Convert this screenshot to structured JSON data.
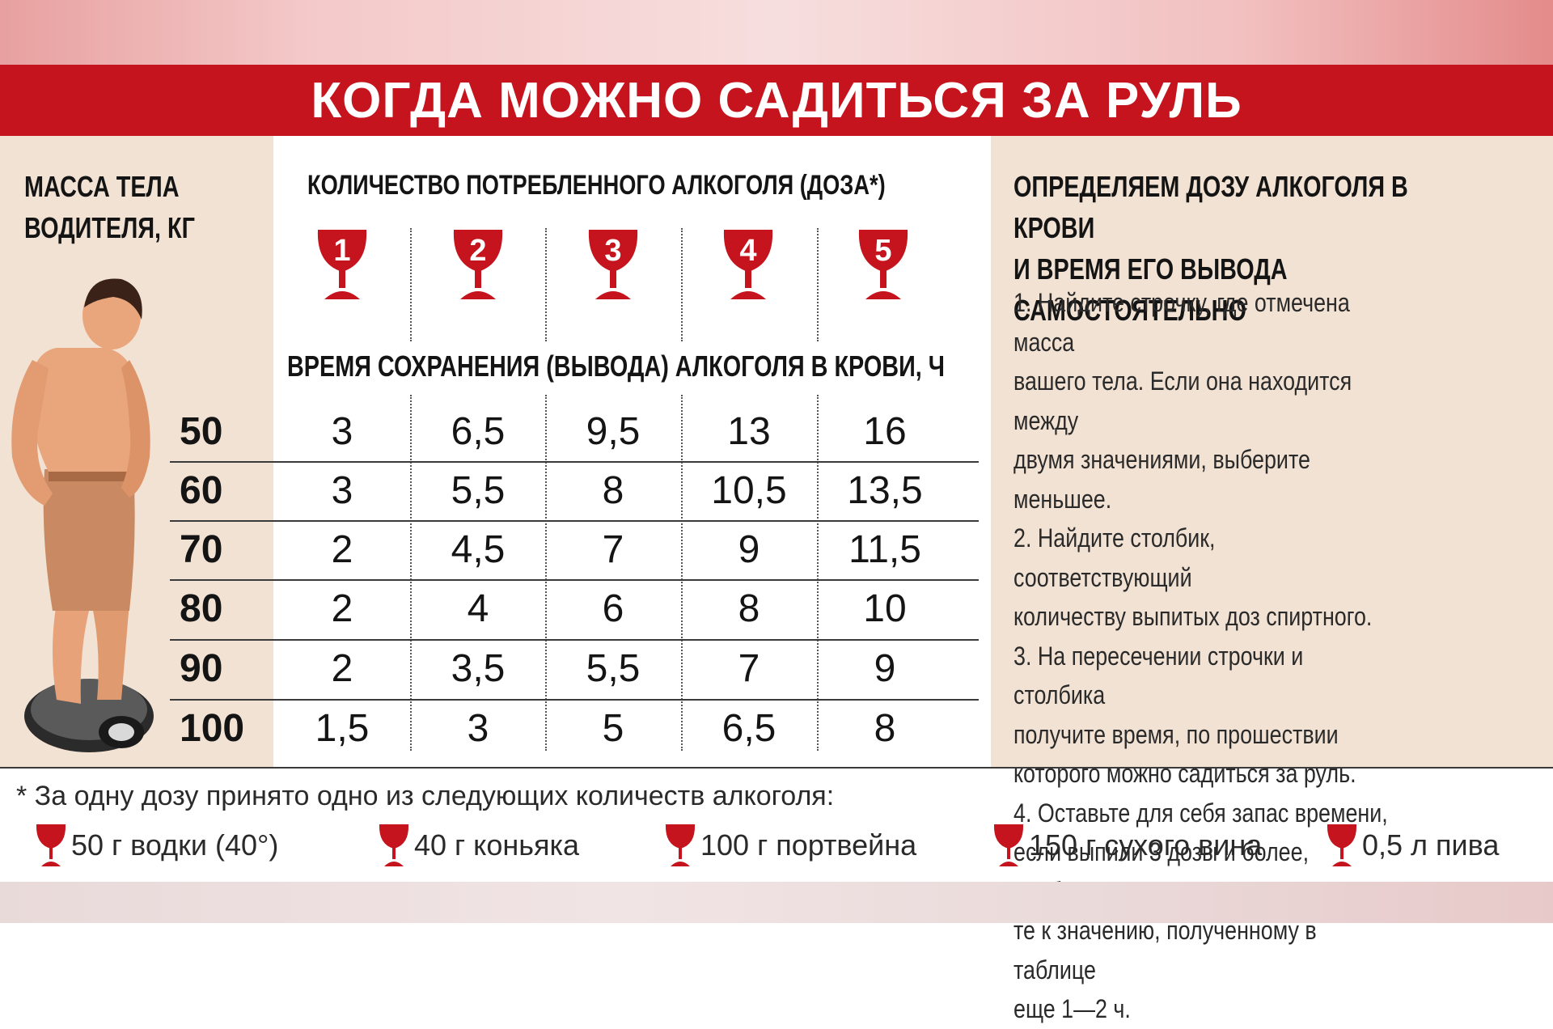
{
  "title": "КОГДА МОЖНО САДИТЬСЯ ЗА РУЛЬ",
  "mass_label": "МАССА ТЕЛА\nВОДИТЕЛЯ, КГ",
  "amount_label": "КОЛИЧЕСТВО ПОТРЕБЛЕННОГО АЛКОГОЛЯ (ДОЗА*)",
  "time_label": "ВРЕМЯ СОХРАНЕНИЯ (ВЫВОДА) АЛКОГОЛЯ В КРОВИ, Ч",
  "doses": [
    "1",
    "2",
    "3",
    "4",
    "5"
  ],
  "chart_data": {
    "type": "table",
    "columns": [
      "1",
      "2",
      "3",
      "4",
      "5"
    ],
    "rows": [
      {
        "mass": "50",
        "values": [
          "3",
          "6,5",
          "9,5",
          "13",
          "16"
        ]
      },
      {
        "mass": "60",
        "values": [
          "3",
          "5,5",
          "8",
          "10,5",
          "13,5"
        ]
      },
      {
        "mass": "70",
        "values": [
          "2",
          "4,5",
          "7",
          "9",
          "11,5"
        ]
      },
      {
        "mass": "80",
        "values": [
          "2",
          "4",
          "6",
          "8",
          "10"
        ]
      },
      {
        "mass": "90",
        "values": [
          "2",
          "3,5",
          "5,5",
          "7",
          "9"
        ]
      },
      {
        "mass": "100",
        "values": [
          "1,5",
          "3",
          "5",
          "6,5",
          "8"
        ]
      }
    ]
  },
  "right_title": "ОПРЕДЕЛЯЕМ ДОЗУ АЛКОГОЛЯ В КРОВИ\nИ ВРЕМЯ ЕГО ВЫВОДА САМОСТОЯТЕЛЬНО",
  "instructions": "1. Найдите строчку, где отмечена масса\nвашего тела. Если она находится между\nдвумя значениями, выберите меньшее.\n2. Найдите столбик, соответствующий\nколичеству выпитых доз спиртного.\n3. На пересечении строчки и столбика\nполучите время, по прошествии\nкоторого можно садиться за руль.\n4. Оставьте для себя запас времени,\nесли выпили 3 дозы и более, прибавь-\nте к значению, полученному в таблице\nеще 1—2 ч.",
  "footnote": "* За одну дозу принято одно из следующих количеств алкоголя:",
  "legend": [
    "50 г водки (40°)",
    "40 г коньяка",
    "100 г портвейна",
    "150 г сухого вина",
    "0,5 л пива"
  ],
  "colors": {
    "accent": "#c5141d",
    "panel": "#f2e2d3"
  },
  "icons": {
    "glass": "wine-glass-icon",
    "person": "man-on-scale-illustration"
  }
}
